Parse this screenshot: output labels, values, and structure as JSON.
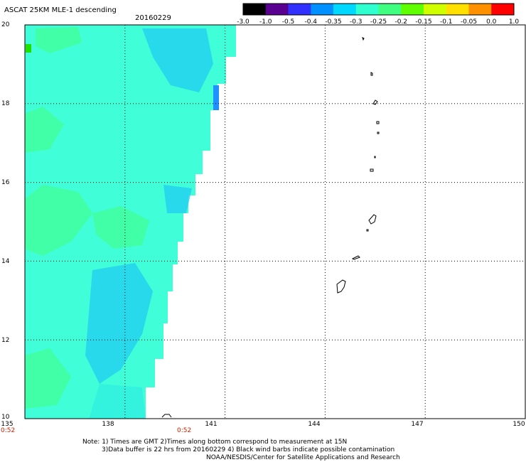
{
  "header": {
    "title": "ASCAT 25KM MLE-1 descending",
    "date": "20160229"
  },
  "colorbar": {
    "labels": [
      "-3.0",
      "-1.0",
      "-0.5",
      "-0.4",
      "-0.35",
      "-0.3",
      "-0.25",
      "-0.2",
      "-0.15",
      "-0.1",
      "-0.05",
      "0.0",
      "1.0"
    ],
    "colors": [
      "#000000",
      "#5a0090",
      "#3030ff",
      "#0090ff",
      "#00d8ff",
      "#30ffd0",
      "#40ff80",
      "#60ff00",
      "#d0ff00",
      "#ffe000",
      "#ff9000",
      "#ff0000"
    ]
  },
  "map": {
    "lat_labels": [
      "20",
      "18",
      "16",
      "14",
      "12",
      "10"
    ],
    "lon_labels": [
      "135",
      "138",
      "141",
      "144",
      "147",
      "150"
    ],
    "lat_range": [
      10,
      20
    ],
    "lon_range": [
      135,
      150
    ],
    "time_labels": [
      "0:52",
      "0:52"
    ],
    "swath_colors": [
      "#40ffd8",
      "#30f0e0",
      "#20d0f0",
      "#40ff9a"
    ]
  },
  "footer": {
    "note_line1": "Note: 1) Times are GMT 2)Times along bottom correspond to measurement at 15N",
    "note_line2": "3)Data buffer is 22 hrs from 20160229 4) Black wind barbs indicate possible contamination",
    "credit": "NOAA/NESDIS/Center for Satellite Applications and Research"
  }
}
